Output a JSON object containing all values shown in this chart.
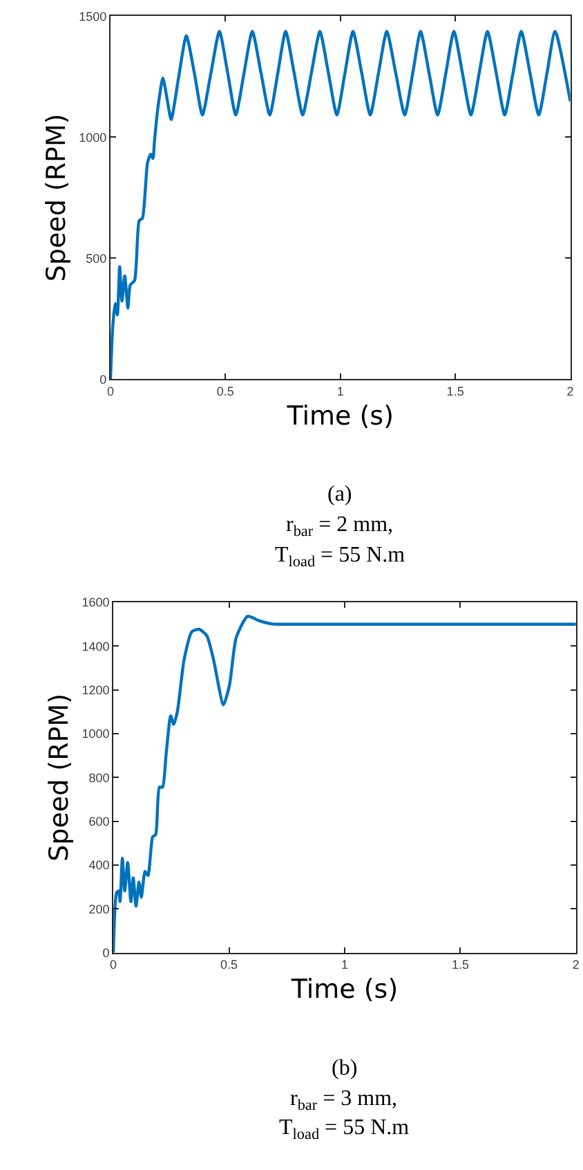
{
  "chart_data": [
    {
      "type": "line",
      "xlabel": "Time (s)",
      "ylabel": "Speed (RPM)",
      "xlim": [
        0,
        2
      ],
      "xticks": [
        0,
        0.5,
        1,
        1.5,
        2
      ],
      "ylim": [
        0,
        1500
      ],
      "yticks": [
        0,
        500,
        1000,
        1500
      ],
      "marker": "none",
      "line_style": "solid",
      "annotations": [
        "(a)",
        "r$_{bar}$ = 2 mm,",
        "T$_{load}$ = 55 N.m"
      ],
      "series": [
        {
          "color": "#0072bd",
          "x": [
            0,
            0.01,
            0.02,
            0.03,
            0.04,
            0.05,
            0.062,
            0.076,
            0.086,
            0.105,
            0.125,
            0.139,
            0.161,
            0.175,
            0.185,
            0.191,
            0.205,
            0.228,
            0.246,
            0.264,
            0.297,
            0.33,
            0.365,
            0.4,
            0.437,
            0.474,
            0.51,
            0.545,
            0.581,
            0.617,
            0.655,
            0.693,
            0.728,
            0.762,
            0.799,
            0.836,
            0.874,
            0.911,
            0.948,
            0.985,
            1.02,
            1.055,
            1.093,
            1.13,
            1.166,
            1.202,
            1.241,
            1.28,
            1.315,
            1.349,
            1.386,
            1.423,
            1.459,
            1.494,
            1.531,
            1.568,
            1.604,
            1.64,
            1.678,
            1.715,
            1.751,
            1.787,
            1.825,
            1.863,
            1.899,
            1.934,
            2.0
          ],
          "values": [
            0,
            218,
            313,
            266,
            465,
            323,
            427,
            294,
            389,
            408,
            655,
            665,
            893,
            930,
            912,
            978,
            1111,
            1244,
            1160,
            1073,
            1250,
            1419,
            1265,
            1092,
            1265,
            1437,
            1265,
            1092,
            1265,
            1437,
            1265,
            1092,
            1265,
            1437,
            1265,
            1092,
            1265,
            1437,
            1265,
            1092,
            1265,
            1437,
            1265,
            1092,
            1265,
            1437,
            1265,
            1092,
            1265,
            1437,
            1265,
            1092,
            1265,
            1437,
            1265,
            1092,
            1265,
            1437,
            1265,
            1092,
            1265,
            1437,
            1265,
            1092,
            1265,
            1437,
            1149
          ]
        }
      ]
    },
    {
      "type": "line",
      "xlabel": "Time (s)",
      "ylabel": "Speed (RPM)",
      "xlim": [
        0,
        2
      ],
      "xticks": [
        0,
        0.5,
        1,
        1.5,
        2
      ],
      "ylim": [
        0,
        1600
      ],
      "yticks": [
        0,
        200,
        400,
        600,
        800,
        1000,
        1200,
        1400,
        1600
      ],
      "marker": "none",
      "line_style": "solid",
      "annotations": [
        "(b)",
        "r$_{bar}$ = 3 mm,",
        "T$_{load}$ = 55 N.m"
      ],
      "series": [
        {
          "color": "#0072bd",
          "x": [
            0,
            0.014,
            0.023,
            0.029,
            0.039,
            0.049,
            0.062,
            0.076,
            0.086,
            0.098,
            0.111,
            0.121,
            0.137,
            0.15,
            0.17,
            0.183,
            0.199,
            0.213,
            0.228,
            0.248,
            0.261,
            0.277,
            0.306,
            0.34,
            0.371,
            0.404,
            0.433,
            0.476,
            0.502,
            0.531,
            0.58,
            0.628,
            0.687,
            0.765,
            1.0,
            1.5,
            2.0
          ],
          "values": [
            0,
            273,
            282,
            233,
            431,
            282,
            411,
            233,
            342,
            213,
            322,
            253,
            371,
            352,
            529,
            539,
            756,
            756,
            905,
            1082,
            1043,
            1102,
            1339,
            1467,
            1477,
            1448,
            1339,
            1132,
            1221,
            1438,
            1536,
            1517,
            1501,
            1500,
            1500,
            1500,
            1500
          ]
        }
      ]
    }
  ]
}
